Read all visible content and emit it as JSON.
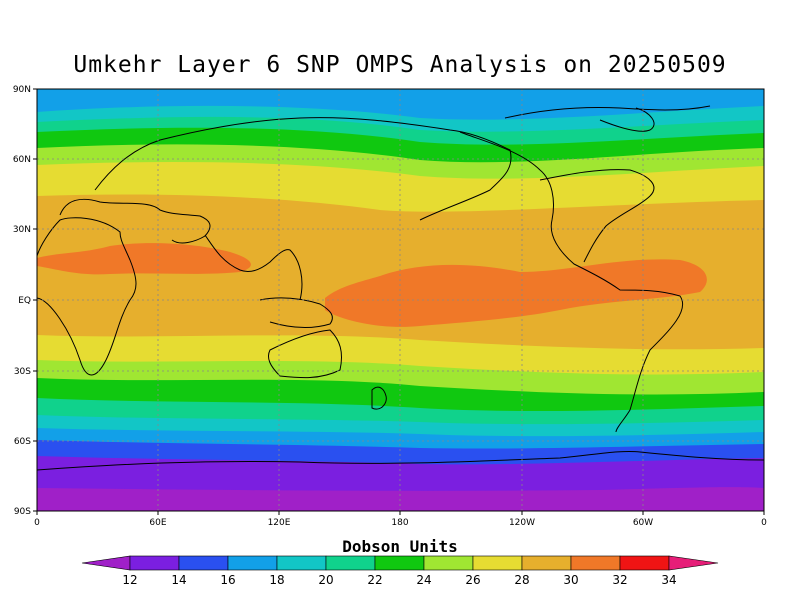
{
  "title": "Umkehr Layer 6 SNP OMPS Analysis on 20250509",
  "colorbar": {
    "label": "Dobson Units",
    "ticks": [
      "12",
      "14",
      "16",
      "18",
      "20",
      "22",
      "24",
      "26",
      "28",
      "30",
      "32",
      "34"
    ],
    "colors": [
      "#a020c8",
      "#7b1fe0",
      "#2a50f0",
      "#12a0e8",
      "#12c6c6",
      "#10d28c",
      "#10c810",
      "#a0e632",
      "#e6dc32",
      "#e6af2d",
      "#f07828",
      "#f01414",
      "#e61e78"
    ]
  },
  "axes": {
    "lat_labels": [
      "90N",
      "60N",
      "30N",
      "EQ",
      "30S",
      "60S",
      "90S"
    ],
    "lon_labels": [
      "0",
      "60E",
      "120E",
      "180",
      "120W",
      "60W",
      "0"
    ]
  },
  "chart_data": {
    "type": "heatmap",
    "title": "Umkehr Layer 6 SNP OMPS Analysis on 20250509",
    "units": "Dobson Units",
    "projection": "cylindrical equidistant",
    "xlim": [
      0,
      360
    ],
    "ylim": [
      -90,
      90
    ],
    "grid": true,
    "levels": [
      12,
      14,
      16,
      18,
      20,
      22,
      24,
      26,
      28,
      30,
      32,
      34
    ],
    "zonal_profile": [
      {
        "lat": 90,
        "value": 18
      },
      {
        "lat": 75,
        "value": 20
      },
      {
        "lat": 60,
        "value": 25
      },
      {
        "lat": 45,
        "value": 28
      },
      {
        "lat": 30,
        "value": 30
      },
      {
        "lat": 15,
        "value": 31
      },
      {
        "lat": 0,
        "value": 31
      },
      {
        "lat": -15,
        "value": 30
      },
      {
        "lat": -30,
        "value": 27
      },
      {
        "lat": -45,
        "value": 23
      },
      {
        "lat": -60,
        "value": 17
      },
      {
        "lat": -75,
        "value": 13
      },
      {
        "lat": -90,
        "value": 13
      }
    ]
  }
}
